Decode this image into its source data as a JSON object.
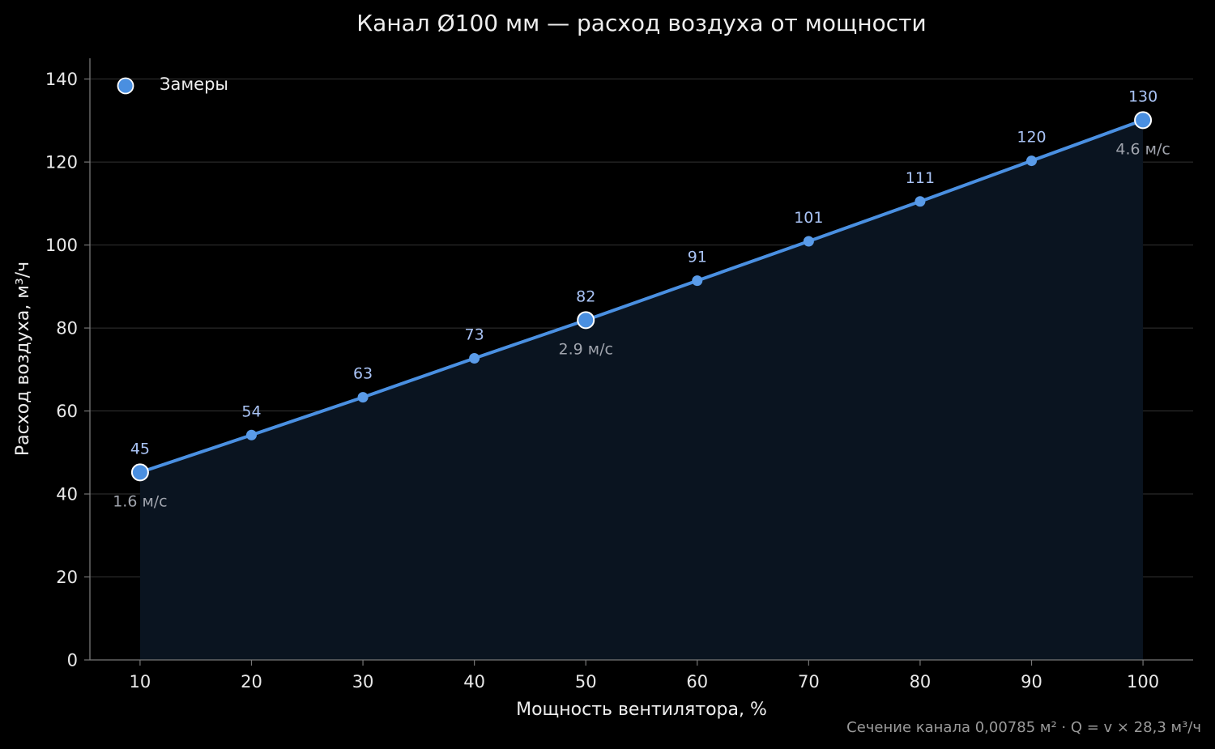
{
  "chart_data": {
    "type": "line",
    "title": "Канал Ø100 мм — расход воздуха от мощности",
    "xlabel": "Мощность вентилятора, %",
    "ylabel": "Расход воздуха, м³/ч",
    "xlim": [
      5.5,
      104.5
    ],
    "ylim": [
      0,
      145
    ],
    "xticks": [
      10,
      20,
      30,
      40,
      50,
      60,
      70,
      80,
      90,
      100
    ],
    "yticks": [
      0,
      20,
      40,
      60,
      80,
      100,
      120,
      140
    ],
    "grid": "horizontal",
    "legend_position": "top-left",
    "series": [
      {
        "x": [
          10,
          20,
          30,
          40,
          50,
          60,
          70,
          80,
          90,
          100
        ],
        "y": [
          45.2,
          54.2,
          63.3,
          72.7,
          81.9,
          91.4,
          100.9,
          110.5,
          120.3,
          130.1
        ],
        "value_labels": [
          "45",
          "54",
          "63",
          "73",
          "82",
          "91",
          "101",
          "111",
          "120",
          "130"
        ],
        "color": "#4a90e2"
      }
    ],
    "measurements": {
      "legend_label": "Замеры",
      "points": [
        {
          "x": 10,
          "y": 45.2,
          "speed": "1.6 м/с"
        },
        {
          "x": 50,
          "y": 81.9,
          "speed": "2.9 м/с"
        },
        {
          "x": 100,
          "y": 130.1,
          "speed": "4.6 м/с"
        }
      ]
    },
    "footnote": "Сечение канала 0,00785 м² · Q = v × 28,3 м³/ч",
    "colors": {
      "background": "#000000",
      "line": "#4a90e2",
      "marker": "#5a9be8",
      "measure_marker": "#4a8fe0",
      "fill": "#0a1420",
      "grid": "#333333",
      "axis": "#777777"
    }
  }
}
